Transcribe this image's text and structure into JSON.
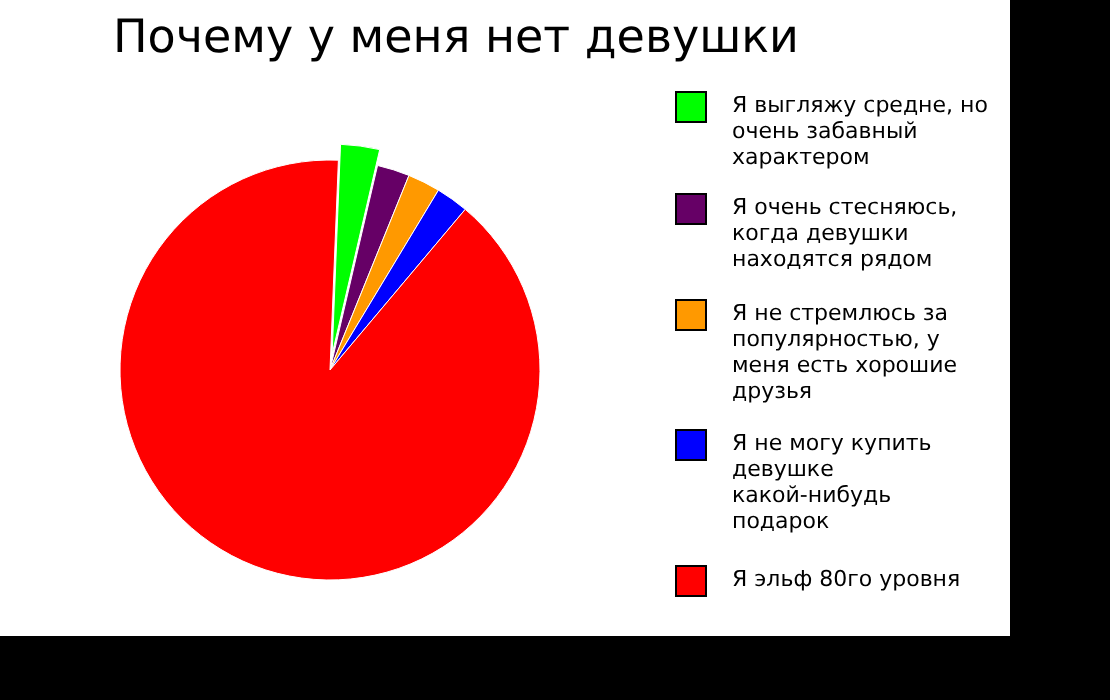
{
  "chart_data": {
    "type": "pie",
    "title": "Почему у меня нет девушки",
    "categories": [
      "Я выгляжу средне, но очень забавный характером",
      "Я очень стесняюсь, когда девушки находятся рядом",
      "Я не стремлюсь за популярностью, у меня есть хорошие друзья",
      "Я не могу купить девушке какой-нибудь подарок",
      "Я эльф 80го уровня"
    ],
    "values": [
      3,
      2.5,
      2.5,
      2.5,
      89.5
    ],
    "colors": [
      "#00ff00",
      "#660066",
      "#ff9900",
      "#0000ff",
      "#ff0000"
    ],
    "legend": "right"
  }
}
